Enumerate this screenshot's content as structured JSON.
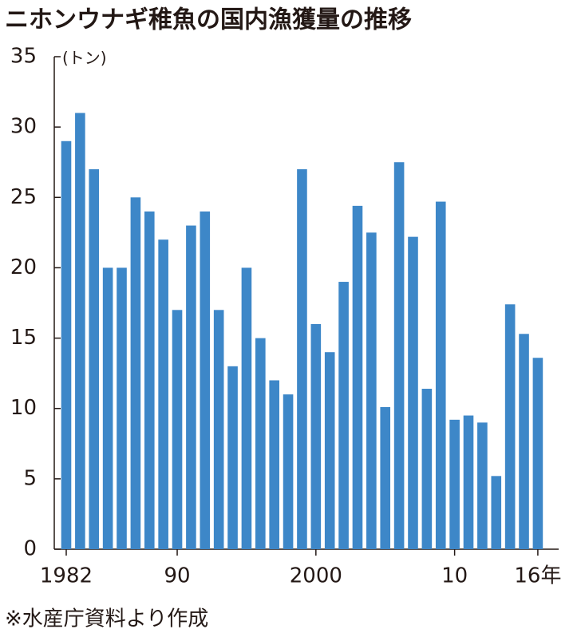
{
  "chart_data": {
    "type": "bar",
    "title": "ニホンウナギ稚魚の国内漁獲量の推移",
    "y_label": "(トン)",
    "source": "※水産庁資料より作成",
    "categories": [
      "1982",
      null,
      null,
      null,
      null,
      null,
      null,
      null,
      "90",
      null,
      null,
      null,
      null,
      null,
      null,
      null,
      null,
      null,
      "2000",
      null,
      null,
      null,
      null,
      null,
      null,
      null,
      null,
      null,
      "10",
      null,
      null,
      null,
      null,
      null,
      "16年"
    ],
    "values": [
      29,
      31,
      27,
      20,
      20,
      25,
      24,
      22,
      17,
      23,
      24,
      17,
      13,
      20,
      15,
      12,
      11,
      27,
      16,
      14,
      19,
      24.4,
      22.5,
      10.1,
      27.5,
      22.2,
      11.4,
      24.7,
      9.2,
      9.5,
      9.0,
      5.2,
      17.4,
      15.3,
      13.6
    ],
    "color": "#3d87c8",
    "ylim": [
      0,
      35
    ],
    "yticks": [
      0,
      5,
      10,
      15,
      20,
      25,
      30,
      35
    ]
  }
}
